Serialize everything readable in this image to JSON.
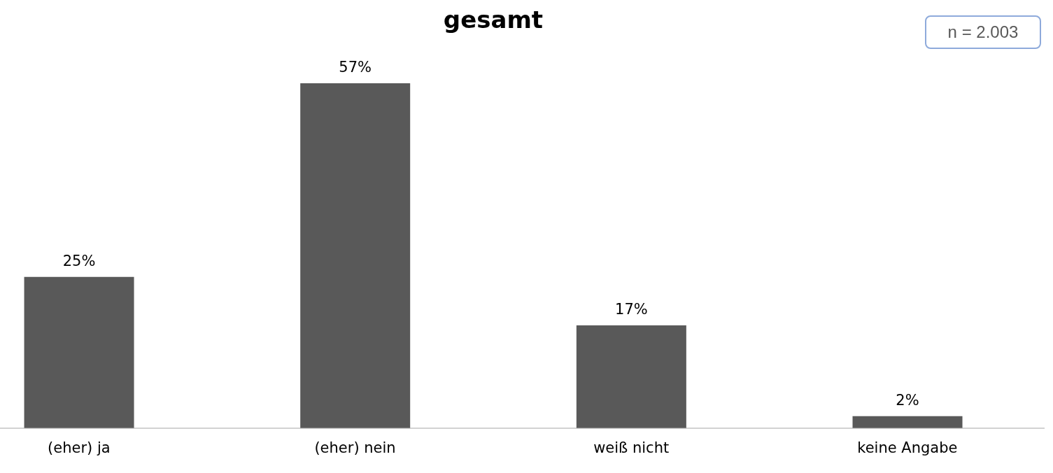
{
  "chart_data": {
    "type": "bar",
    "title": "gesamt",
    "categories": [
      "(eher) ja",
      "(eher) nein",
      "weiß nicht",
      "keine Angabe"
    ],
    "values": [
      25,
      57,
      17,
      2
    ],
    "value_labels": [
      "25%",
      "57%",
      "17%",
      "2%"
    ],
    "color": "#595959",
    "annotations": [
      "n = 2.003"
    ]
  }
}
